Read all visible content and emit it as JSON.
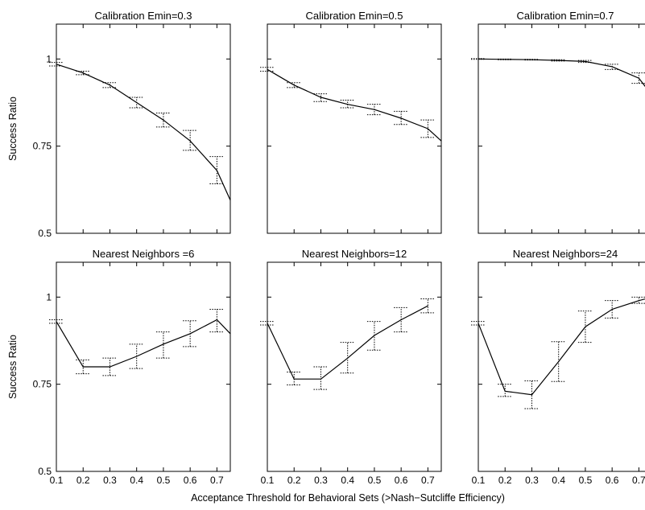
{
  "figure": {
    "xlabel": "Acceptance Threshold for Behavioral Sets (>Nash−Sutcliffe Efficiency)",
    "ylabel": "Success Ratio"
  },
  "chart_data": [
    {
      "type": "line",
      "title": "Calibration Emin=0.3",
      "xlabel": "",
      "ylabel": "Success Ratio",
      "xlim": [
        0.1,
        0.75
      ],
      "ylim": [
        0.5,
        1.1
      ],
      "xticks": [],
      "yticks": [
        "0.5",
        "0.75",
        "1"
      ],
      "grid": false,
      "x": [
        0.1,
        0.2,
        0.3,
        0.4,
        0.5,
        0.6,
        0.7,
        0.75
      ],
      "y": [
        0.985,
        0.96,
        0.925,
        0.875,
        0.825,
        0.765,
        0.68,
        0.595
      ],
      "error_low": [
        0.98,
        0.955,
        0.918,
        0.86,
        0.805,
        0.738,
        0.642,
        null
      ],
      "error_high": [
        0.99,
        0.965,
        0.932,
        0.89,
        0.845,
        0.795,
        0.72,
        null
      ]
    },
    {
      "type": "line",
      "title": "Calibration Emin=0.5",
      "xlabel": "",
      "ylabel": "",
      "xlim": [
        0.1,
        0.75
      ],
      "ylim": [
        0.5,
        1.1
      ],
      "xticks": [],
      "yticks": [],
      "grid": false,
      "x": [
        0.1,
        0.2,
        0.3,
        0.4,
        0.5,
        0.6,
        0.7,
        0.75
      ],
      "y": [
        0.97,
        0.925,
        0.89,
        0.87,
        0.855,
        0.83,
        0.8,
        0.765
      ],
      "error_low": [
        0.965,
        0.918,
        0.878,
        0.86,
        0.84,
        0.812,
        0.775,
        null
      ],
      "error_high": [
        0.976,
        0.932,
        0.9,
        0.882,
        0.87,
        0.85,
        0.825,
        null
      ]
    },
    {
      "type": "line",
      "title": "Calibration Emin=0.7",
      "xlabel": "",
      "ylabel": "",
      "xlim": [
        0.1,
        0.75
      ],
      "ylim": [
        0.5,
        1.1
      ],
      "xticks": [],
      "yticks": [],
      "grid": false,
      "x": [
        0.1,
        0.2,
        0.3,
        0.4,
        0.5,
        0.6,
        0.7,
        0.75
      ],
      "y": [
        1.0,
        0.999,
        0.998,
        0.996,
        0.993,
        0.978,
        0.945,
        0.895
      ],
      "error_low": [
        0.999,
        0.998,
        0.997,
        0.994,
        0.99,
        0.97,
        0.93,
        null
      ],
      "error_high": [
        1.001,
        1.0,
        0.999,
        0.998,
        0.996,
        0.985,
        0.96,
        null
      ]
    },
    {
      "type": "line",
      "title": "Nearest Neighbors =6",
      "xlabel": "",
      "ylabel": "Success Ratio",
      "xlim": [
        0.1,
        0.75
      ],
      "ylim": [
        0.5,
        1.1
      ],
      "xticks": [
        "0.1",
        "0.2",
        "0.3",
        "0.4",
        "0.5",
        "0.6",
        "0.7"
      ],
      "yticks": [
        "0.5",
        "0.75",
        "1"
      ],
      "grid": false,
      "x": [
        0.1,
        0.2,
        0.3,
        0.4,
        0.5,
        0.6,
        0.7,
        0.75
      ],
      "y": [
        0.93,
        0.8,
        0.8,
        0.83,
        0.865,
        0.895,
        0.935,
        0.895
      ],
      "error_low": [
        0.925,
        0.78,
        0.775,
        0.795,
        0.825,
        0.858,
        0.9,
        null
      ],
      "error_high": [
        0.935,
        0.82,
        0.825,
        0.865,
        0.9,
        0.932,
        0.965,
        null
      ]
    },
    {
      "type": "line",
      "title": "Nearest Neighbors=12",
      "xlabel": "",
      "ylabel": "",
      "xlim": [
        0.1,
        0.75
      ],
      "ylim": [
        0.5,
        1.1
      ],
      "xticks": [
        "0.1",
        "0.2",
        "0.3",
        "0.4",
        "0.5",
        "0.6",
        "0.7"
      ],
      "yticks": [],
      "grid": false,
      "x": [
        0.1,
        0.2,
        0.3,
        0.4,
        0.5,
        0.6,
        0.7
      ],
      "y": [
        0.925,
        0.765,
        0.765,
        0.825,
        0.89,
        0.935,
        0.975
      ],
      "error_low": [
        0.92,
        0.748,
        0.735,
        0.782,
        0.848,
        0.9,
        0.955
      ],
      "error_high": [
        0.93,
        0.785,
        0.8,
        0.87,
        0.93,
        0.97,
        0.995
      ]
    },
    {
      "type": "line",
      "title": "Nearest Neighbors=24",
      "xlabel": "",
      "ylabel": "",
      "xlim": [
        0.1,
        0.75
      ],
      "ylim": [
        0.5,
        1.1
      ],
      "xticks": [
        "0.1",
        "0.2",
        "0.3",
        "0.4",
        "0.5",
        "0.6",
        "0.7"
      ],
      "yticks": [],
      "grid": false,
      "x": [
        0.1,
        0.2,
        0.3,
        0.4,
        0.5,
        0.6,
        0.7,
        0.75
      ],
      "y": [
        0.925,
        0.73,
        0.72,
        0.815,
        0.915,
        0.965,
        0.99,
        1.0
      ],
      "error_low": [
        0.92,
        0.715,
        0.68,
        0.758,
        0.87,
        0.94,
        0.982,
        null
      ],
      "error_high": [
        0.93,
        0.75,
        0.76,
        0.872,
        0.96,
        0.99,
        1.0,
        null
      ]
    }
  ]
}
